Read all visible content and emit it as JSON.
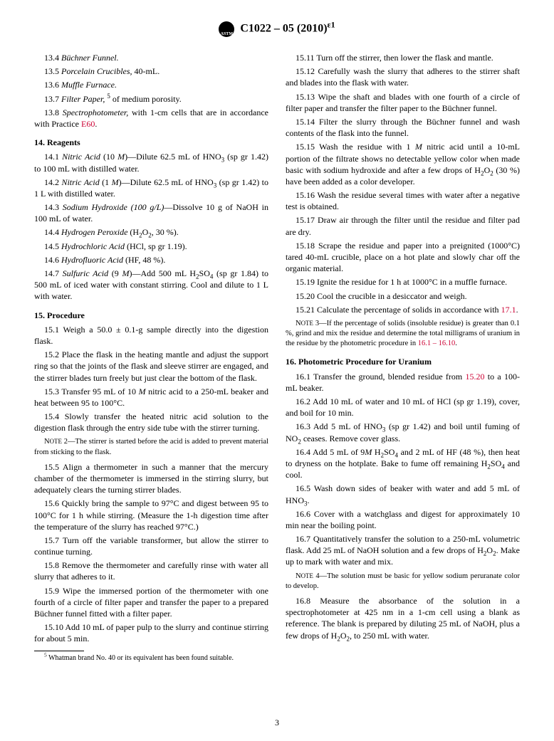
{
  "header": {
    "designation": "C1022 – 05 (2010)",
    "epsilon": "ε1"
  },
  "left": {
    "items": [
      {
        "num": "13.4",
        "body": "Büchner Funnel.",
        "ital_end": 15
      },
      {
        "num": "13.5",
        "body": "Porcelain Crucibles, 40-mL.",
        "ital_end": 20
      },
      {
        "num": "13.6",
        "body": "Muffle Furnace.",
        "ital_end": 15
      },
      {
        "num": "13.7",
        "body_html": "<span class=\"italic\">Filter Paper,</span> <span class=\"sup\">5</span> of medium porosity."
      },
      {
        "num": "13.8",
        "body_html": "<span class=\"italic\">Spectrophotometer,</span> with 1-cm cells that are in accordance with Practice <span class=\"link\">E60</span>."
      }
    ],
    "sec14_title": "14. Reagents",
    "sec14": [
      {
        "num": "14.1",
        "body_html": "<span class=\"italic\">Nitric Acid</span> (10 <span class=\"italic\">M</span>)—Dilute 62.5 mL of HNO<span class=\"sub\">3</span> (sp gr 1.42) to 100 mL with distilled water."
      },
      {
        "num": "14.2",
        "body_html": "<span class=\"italic\">Nitric Acid</span> (1 <span class=\"italic\">M</span>)—Dilute 62.5 mL of HNO<span class=\"sub\">3</span> (sp gr 1.42) to 1 L with distilled water."
      },
      {
        "num": "14.3",
        "body_html": "<span class=\"italic\">Sodium Hydroxide (100 g/L)</span>—Dissolve 10 g of NaOH in 100 mL of water."
      },
      {
        "num": "14.4",
        "body_html": "<span class=\"italic\">Hydrogen Peroxide</span> (H<span class=\"sub\">2</span>O<span class=\"sub\">2</span>, 30 %)."
      },
      {
        "num": "14.5",
        "body_html": "<span class=\"italic\">Hydrochloric Acid</span> (HCl, sp gr 1.19)."
      },
      {
        "num": "14.6",
        "body_html": "<span class=\"italic\">Hydrofluoric Acid</span> (HF, 48 %)."
      },
      {
        "num": "14.7",
        "body_html": "<span class=\"italic\">Sulfuric Acid</span> (9 <span class=\"italic\">M</span>)—Add 500 mL H<span class=\"sub\">2</span>SO<span class=\"sub\">4</span> (sp gr 1.84) to 500 mL of iced water with constant stirring. Cool and dilute to 1 L with water."
      }
    ],
    "sec15_title": "15. Procedure",
    "sec15a": [
      {
        "num": "15.1",
        "body": "Weigh a 50.0 ± 0.1-g sample directly into the digestion flask."
      },
      {
        "num": "15.2",
        "body": "Place the flask in the heating mantle and adjust the support ring so that the joints of the flask and sleeve stirrer are engaged, and the stirrer blades turn freely but just clear the bottom of the flask."
      },
      {
        "num": "15.3",
        "body_html": "Transfer 95 mL of 10 <span class=\"italic\">M</span> nitric acid to a 250-mL beaker and heat between 95 to 100°C."
      },
      {
        "num": "15.4",
        "body": "Slowly transfer the heated nitric acid solution to the digestion flask through the entry side tube with the stirrer turning."
      }
    ],
    "note2": "NOTE 2—The stirrer is started before the acid is added to prevent material from sticking to the flask.",
    "sec15b": [
      {
        "num": "15.5",
        "body": "Align a thermometer in such a manner that the mercury chamber of the thermometer is immersed in the stirring slurry, but adequately clears the turning stirrer blades."
      },
      {
        "num": "15.6",
        "body": "Quickly bring the sample to 97°C and digest between 95 to 100°C for 1 h while stirring. (Measure the 1-h digestion time after the temperature of the slurry has reached 97°C.)"
      },
      {
        "num": "15.7",
        "body": "Turn off the variable transformer, but allow the stirrer to continue turning."
      },
      {
        "num": "15.8",
        "body": "Remove the thermometer and carefully rinse with water all slurry that adheres to it."
      },
      {
        "num": "15.9",
        "body": "Wipe the immersed portion of the thermometer with one fourth of a circle of filter paper and transfer the paper to a prepared Büchner funnel fitted with a filter paper."
      },
      {
        "num": "15.10",
        "body": "Add 10 mL of paper pulp to the slurry and continue stirring for about 5 min."
      }
    ],
    "footnote": "5 Whatman brand No. 40 or its equivalent has been found suitable."
  },
  "right": {
    "sec15c": [
      {
        "num": "15.11",
        "body": "Turn off the stirrer, then lower the flask and mantle."
      },
      {
        "num": "15.12",
        "body": "Carefully wash the slurry that adheres to the stirrer shaft and blades into the flask with water."
      },
      {
        "num": "15.13",
        "body": "Wipe the shaft and blades with one fourth of a circle of filter paper and transfer the filter paper to the Büchner funnel."
      },
      {
        "num": "15.14",
        "body": "Filter the slurry through the Büchner funnel and wash contents of the flask into the funnel."
      },
      {
        "num": "15.15",
        "body_html": "Wash the residue with 1 <span class=\"italic\">M</span> nitric acid until a 10-mL portion of the filtrate shows no detectable yellow color when made basic with sodium hydroxide and after a few drops of H<span class=\"sub\">2</span>O<span class=\"sub\">2</span>  (30 %) have been added as a color developer."
      },
      {
        "num": "15.16",
        "body": "Wash the residue several times with water after a negative test is obtained."
      },
      {
        "num": "15.17",
        "body": "Draw air through the filter until the residue and filter pad are dry."
      },
      {
        "num": "15.18",
        "body": "Scrape the residue and paper into a preignited (1000°C) tared 40-mL crucible, place on a hot plate and slowly char off the organic material."
      },
      {
        "num": "15.19",
        "body": "Ignite the residue for 1 h at 1000°C in a muffle furnace."
      },
      {
        "num": "15.20",
        "body": "Cool the crucible in a desiccator and weigh."
      },
      {
        "num": "15.21",
        "body_html": "Calculate the percentage of solids in accordance with <span class=\"link\">17.1</span>."
      }
    ],
    "note3": "NOTE 3—If the percentage of solids (insoluble residue) is greater than 0.1 %, grind and mix the residue and determine the total milligrams of uranium in the residue by the photometric procedure in ",
    "note3_link": "16.1 – 16.10",
    "sec16_title": "16. Photometric Procedure for Uranium",
    "sec16": [
      {
        "num": "16.1",
        "body_html": "Transfer the ground, blended residue from <span class=\"link\">15.20</span> to a 100-mL beaker."
      },
      {
        "num": "16.2",
        "body": "Add 10 mL of water and 10 mL of HCl (sp gr 1.19), cover, and boil for 10 min."
      },
      {
        "num": "16.3",
        "body_html": "Add 5 mL of HNO<span class=\"sub\">3</span> (sp gr 1.42) and boil until fuming of NO<span class=\"sub\">2</span> ceases. Remove cover glass."
      },
      {
        "num": "16.4",
        "body_html": "Add 5 mL of 9<span class=\"italic\">M</span> H<span class=\"sub\">2</span>SO<span class=\"sub\">4</span> and 2 mL of HF (48 %), then heat to dryness on the hotplate. Bake to fume off remaining H<span class=\"sub\">2</span>SO<span class=\"sub\">4</span> and cool."
      },
      {
        "num": "16.5",
        "body_html": "Wash down sides of beaker with water and add 5 mL of HNO<span class=\"sub\">3</span>."
      },
      {
        "num": "16.6",
        "body": "Cover with a watchglass and digest for approximately 10 min near the boiling point."
      },
      {
        "num": "16.7",
        "body_html": "Quantitatively transfer the solution to a 250-mL volumetric flask. Add 25 mL of NaOH solution and a few drops of H<span class=\"sub\">2</span>O<span class=\"sub\">2</span>. Make up to mark with water and mix."
      }
    ],
    "note4": "NOTE 4—The solution must be basic for yellow sodium peruranate color to develop.",
    "sec16b": [
      {
        "num": "16.8",
        "body_html": "Measure the absorbance of the solution in a spectrophotometer at 425 nm in a 1-cm cell using a blank as reference.  The blank is prepared by diluting 25 mL of NaOH, plus a few drops of H<span class=\"sub\">2</span>O<span class=\"sub\">2</span>, to 250 mL with water."
      }
    ]
  },
  "pagenum": "3"
}
